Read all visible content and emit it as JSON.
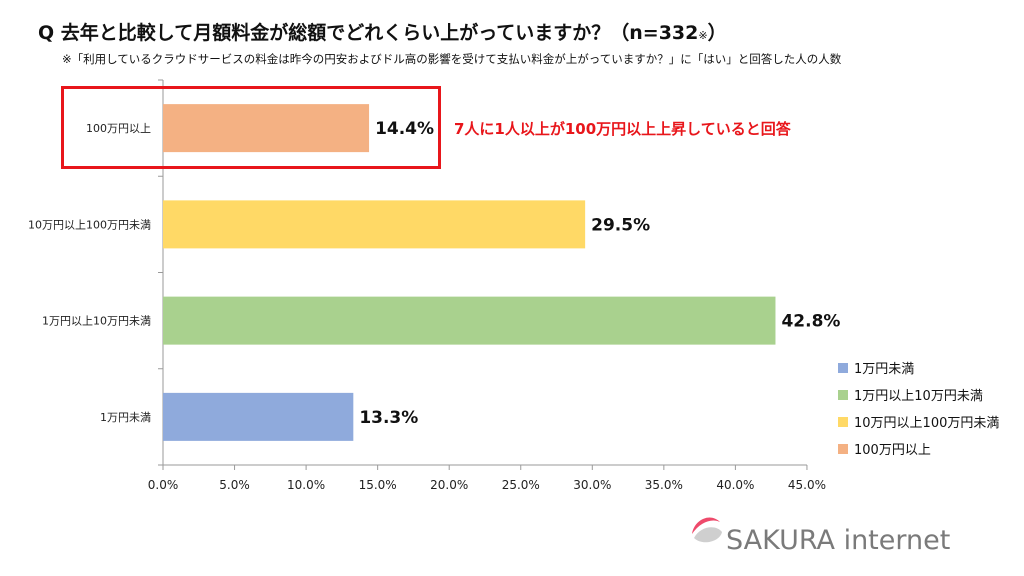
{
  "title": "Q 去年と比較して月額料金が総額でどれくらい上がっていますか？（n=332",
  "title_suffix": "※",
  "title_close": "）",
  "note": "※「利用しているクラウドサービスの料金は昨今の円安およびドル高の影響を受けて支払い料金が上がっていますか？」に「はい」と回答した人の人数",
  "callout": "7人に1人以上が100万円以上上昇していると回答",
  "logo_text": "SAKURA internet",
  "colors": {
    "accent": "#e8161b",
    "axis": "#9a9a9a",
    "logo_pink": "#ee4a6b",
    "logo_gray": "#cfcfcf"
  },
  "chart_data": {
    "type": "bar",
    "orientation": "horizontal",
    "categories": [
      "100万円以上",
      "10万円以上100万円未満",
      "1万円以上10万円未満",
      "1万円未満"
    ],
    "values": [
      14.4,
      29.5,
      42.8,
      13.3
    ],
    "value_labels": [
      "14.4%",
      "29.5%",
      "42.8%",
      "13.3%"
    ],
    "colors": [
      "#f4b183",
      "#ffd966",
      "#a9d18e",
      "#8faadc"
    ],
    "xlim": [
      0,
      45
    ],
    "xticks": [
      "0.0%",
      "5.0%",
      "10.0%",
      "15.0%",
      "20.0%",
      "25.0%",
      "30.0%",
      "35.0%",
      "40.0%",
      "45.0%"
    ],
    "grid": false,
    "legend_position": "right",
    "legend": [
      {
        "name": "1万円未満",
        "color": "#8faadc"
      },
      {
        "name": "1万円以上10万円未満",
        "color": "#a9d18e"
      },
      {
        "name": "10万円以上100万円未満",
        "color": "#ffd966"
      },
      {
        "name": "100万円以上",
        "color": "#f4b183"
      }
    ]
  }
}
